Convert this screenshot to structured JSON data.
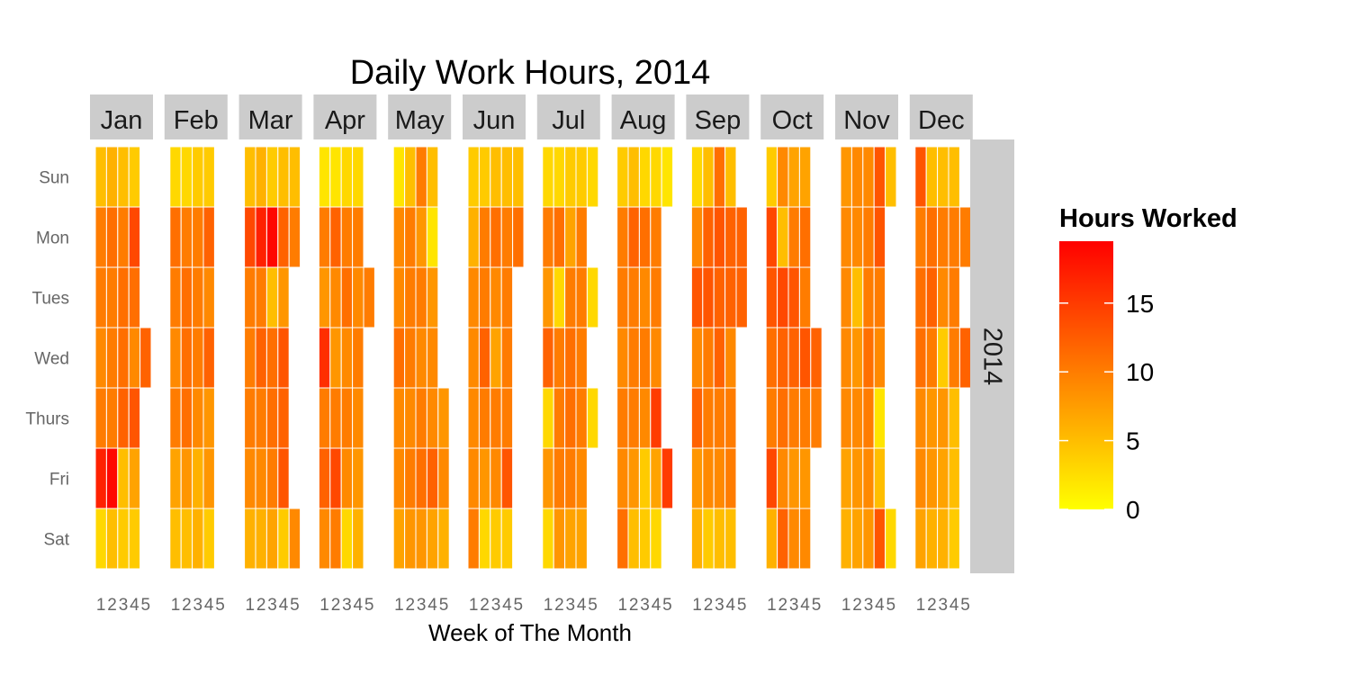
{
  "chart_data": {
    "type": "heatmap",
    "title": "Daily Work Hours, 2014",
    "xlabel": "Week of The Month",
    "ylabel": "",
    "year": "2014",
    "months": [
      "Jan",
      "Feb",
      "Mar",
      "Apr",
      "May",
      "Jun",
      "Jul",
      "Aug",
      "Sep",
      "Oct",
      "Nov",
      "Dec"
    ],
    "weekdays": [
      "Sun",
      "Mon",
      "Tues",
      "Wed",
      "Thurs",
      "Fri",
      "Sat"
    ],
    "week_ticks": [
      "1",
      "2",
      "3",
      "4",
      "5"
    ],
    "legend": {
      "title": "Hours Worked",
      "ticks": [
        0,
        5,
        10,
        15
      ],
      "range": [
        0,
        19.5
      ],
      "low_color": "#FFFF00",
      "high_color": "#FF0000",
      "position": "right"
    },
    "month_data": [
      {
        "month": "Jan",
        "hours": [
          [
            5,
            6,
            5,
            4,
            null
          ],
          [
            10,
            11,
            10,
            14,
            null
          ],
          [
            10,
            10,
            11,
            11,
            null
          ],
          [
            9,
            10,
            11,
            9,
            12
          ],
          [
            10,
            10,
            12,
            13,
            null
          ],
          [
            17,
            19,
            5,
            7,
            null
          ],
          [
            3,
            5,
            4,
            4,
            null
          ]
        ]
      },
      {
        "month": "Feb",
        "hours": [
          [
            3,
            3,
            4,
            4,
            null
          ],
          [
            11,
            10,
            10,
            12,
            null
          ],
          [
            10,
            11,
            10,
            9,
            null
          ],
          [
            9,
            11,
            10,
            12,
            null
          ],
          [
            10,
            11,
            9,
            8,
            null
          ],
          [
            7,
            8,
            6,
            8,
            null
          ],
          [
            5,
            5,
            6,
            4,
            null
          ]
        ]
      },
      {
        "month": "Mar",
        "hours": [
          [
            5,
            6,
            4,
            5,
            5
          ],
          [
            14,
            17,
            19,
            12,
            10
          ],
          [
            10,
            10,
            5,
            8,
            null
          ],
          [
            10,
            12,
            11,
            13,
            null
          ],
          [
            10,
            10,
            11,
            12,
            null
          ],
          [
            9,
            9,
            10,
            13,
            null
          ],
          [
            6,
            6,
            7,
            4,
            9
          ]
        ]
      },
      {
        "month": "Apr",
        "hours": [
          [
            2,
            2,
            3,
            3,
            null
          ],
          [
            10,
            12,
            10,
            10,
            null
          ],
          [
            8,
            9,
            11,
            9,
            10
          ],
          [
            16,
            8,
            9,
            10,
            null
          ],
          [
            10,
            10,
            10,
            9,
            null
          ],
          [
            12,
            14,
            9,
            8,
            null
          ],
          [
            9,
            10,
            3,
            6,
            null
          ]
        ]
      },
      {
        "month": "May",
        "hours": [
          [
            2,
            5,
            10,
            5,
            null
          ],
          [
            9,
            10,
            8,
            2,
            null
          ],
          [
            9,
            10,
            10,
            8,
            null
          ],
          [
            11,
            10,
            9,
            9,
            null
          ],
          [
            9,
            9,
            10,
            9,
            8
          ],
          [
            9,
            10,
            11,
            12,
            9
          ],
          [
            7,
            8,
            8,
            7,
            6
          ]
        ]
      },
      {
        "month": "Jun",
        "hours": [
          [
            4,
            4,
            5,
            5,
            5
          ],
          [
            6,
            10,
            11,
            10,
            11
          ],
          [
            9,
            10,
            9,
            10,
            null
          ],
          [
            9,
            12,
            7,
            10,
            null
          ],
          [
            9,
            10,
            10,
            10,
            null
          ],
          [
            9,
            8,
            9,
            13,
            null
          ],
          [
            10,
            3,
            4,
            4,
            null
          ]
        ]
      },
      {
        "month": "Jul",
        "hours": [
          [
            3,
            3,
            4,
            4,
            3
          ],
          [
            10,
            11,
            7,
            10,
            null
          ],
          [
            8,
            3,
            10,
            10,
            3
          ],
          [
            12,
            10,
            11,
            10,
            null
          ],
          [
            3,
            10,
            11,
            10,
            3
          ],
          [
            8,
            10,
            10,
            9,
            null
          ],
          [
            3,
            8,
            7,
            7,
            null
          ]
        ]
      },
      {
        "month": "Aug",
        "hours": [
          [
            4,
            5,
            3,
            3,
            2
          ],
          [
            10,
            12,
            11,
            10,
            null
          ],
          [
            10,
            10,
            9,
            10,
            null
          ],
          [
            9,
            10,
            10,
            9,
            null
          ],
          [
            10,
            10,
            9,
            15,
            null
          ],
          [
            9,
            8,
            4,
            7,
            15
          ],
          [
            11,
            5,
            4,
            3,
            null
          ]
        ]
      },
      {
        "month": "Sep",
        "hours": [
          [
            3,
            5,
            11,
            5,
            null
          ],
          [
            9,
            12,
            13,
            12,
            12
          ],
          [
            13,
            13,
            12,
            12,
            12
          ],
          [
            9,
            10,
            12,
            9,
            null
          ],
          [
            12,
            10,
            10,
            10,
            null
          ],
          [
            8,
            9,
            9,
            10,
            null
          ],
          [
            6,
            4,
            5,
            5,
            null
          ]
        ]
      },
      {
        "month": "Oct",
        "hours": [
          [
            4,
            9,
            7,
            7,
            null
          ],
          [
            14,
            5,
            10,
            11,
            null
          ],
          [
            13,
            14,
            13,
            10,
            null
          ],
          [
            11,
            12,
            12,
            13,
            12
          ],
          [
            10,
            11,
            10,
            10,
            10
          ],
          [
            14,
            9,
            8,
            8,
            null
          ],
          [
            6,
            12,
            9,
            9,
            null
          ]
        ]
      },
      {
        "month": "Nov",
        "hours": [
          [
            8,
            9,
            9,
            13,
            5
          ],
          [
            9,
            9,
            10,
            13,
            null
          ],
          [
            9,
            5,
            10,
            10,
            null
          ],
          [
            9,
            8,
            11,
            9,
            null
          ],
          [
            9,
            9,
            10,
            2,
            null
          ],
          [
            7,
            8,
            9,
            5,
            null
          ],
          [
            6,
            7,
            8,
            13,
            3
          ]
        ]
      },
      {
        "month": "Dec",
        "hours": [
          [
            13,
            5,
            5,
            5,
            null
          ],
          [
            10,
            11,
            10,
            10,
            10
          ],
          [
            11,
            12,
            9,
            10,
            null
          ],
          [
            11,
            10,
            4,
            10,
            12
          ],
          [
            9,
            8,
            8,
            5,
            null
          ],
          [
            9,
            8,
            7,
            5,
            null
          ],
          [
            7,
            6,
            6,
            4,
            null
          ]
        ]
      }
    ]
  }
}
